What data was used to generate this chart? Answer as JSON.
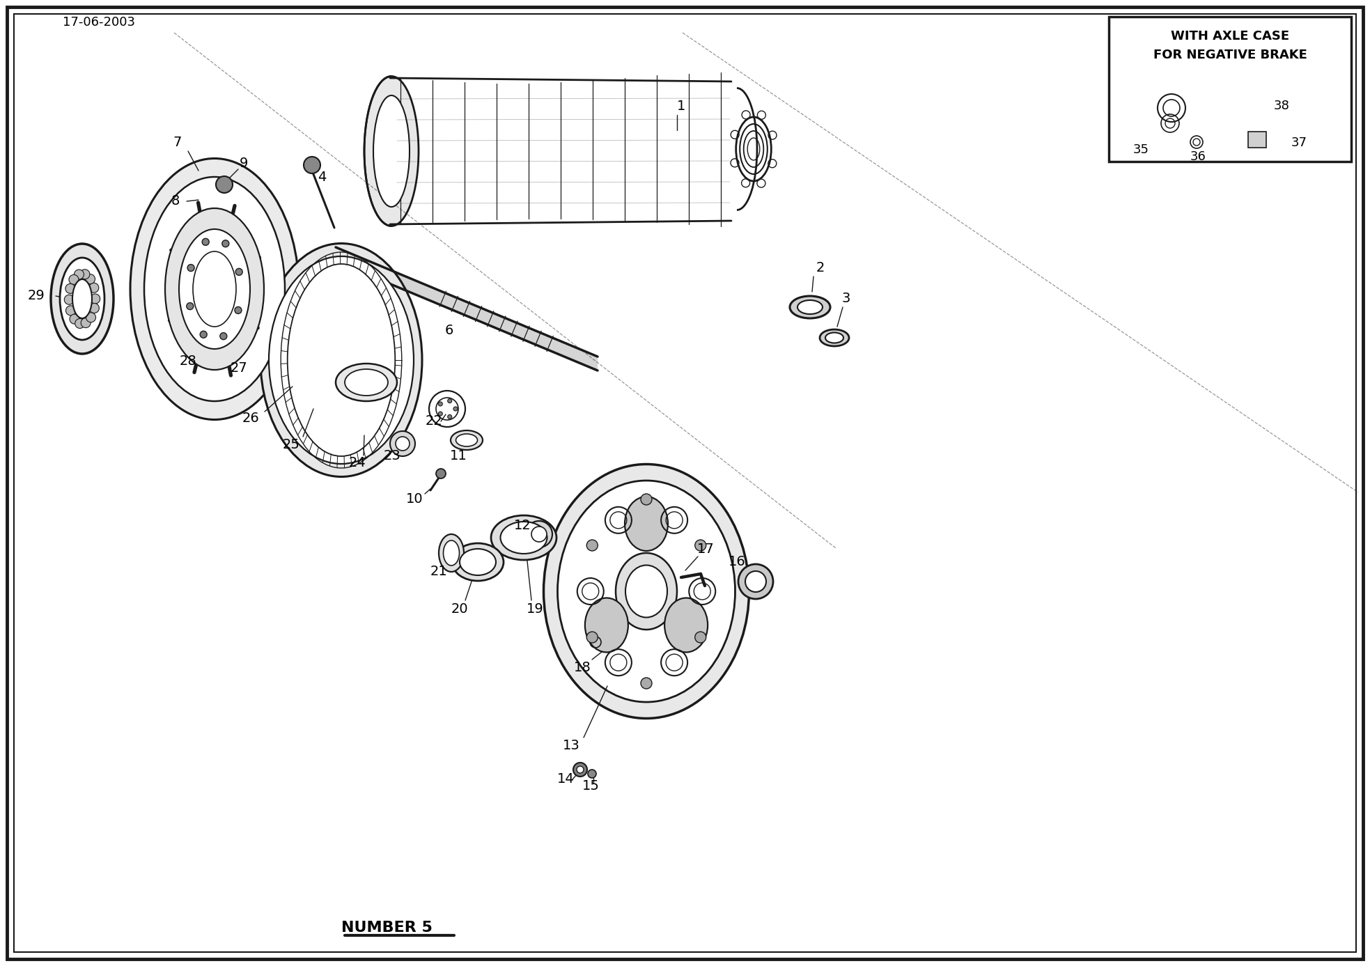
{
  "date_label": "17-06-2003",
  "bottom_label": "NUMBER 5",
  "inset_title_line1": "WITH AXLE CASE",
  "inset_title_line2": "FOR NEGATIVE BRAKE",
  "bg_color": "#ffffff",
  "line_color": "#1a1a1a",
  "figsize": [
    19.67,
    13.87
  ],
  "dpi": 100
}
